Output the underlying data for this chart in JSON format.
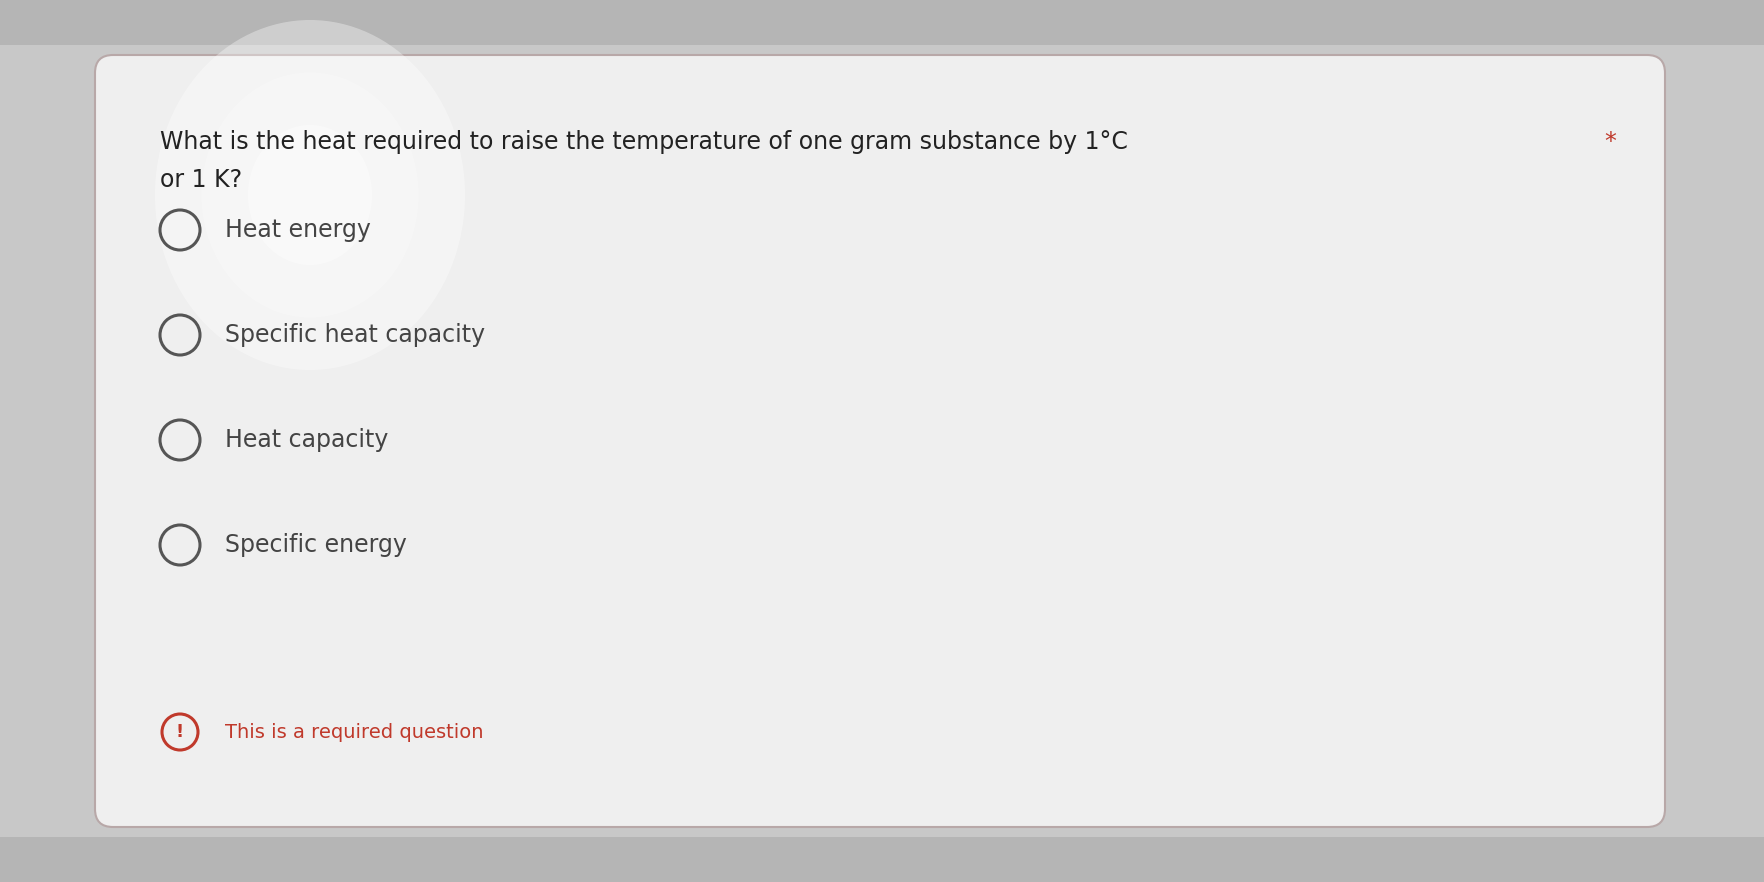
{
  "question_line1": "What is the heat required to raise the temperature of one gram substance by 1°C",
  "question_line2": "or 1 K?",
  "options": [
    "Heat energy",
    "Specific heat capacity",
    "Heat capacity",
    "Specific energy"
  ],
  "required_text": "This is a required question",
  "bg_outer": "#c8c8c8",
  "bg_card": "#efefef",
  "card_border_color": "#b8a8a8",
  "question_color": "#222222",
  "option_color": "#444444",
  "required_color": "#c0392b",
  "asterisk_color": "#c0392b",
  "circle_edge_color": "#555555",
  "figsize": [
    17.65,
    8.82
  ],
  "dpi": 100,
  "question_fontsize": 17,
  "option_fontsize": 17,
  "required_fontsize": 14
}
